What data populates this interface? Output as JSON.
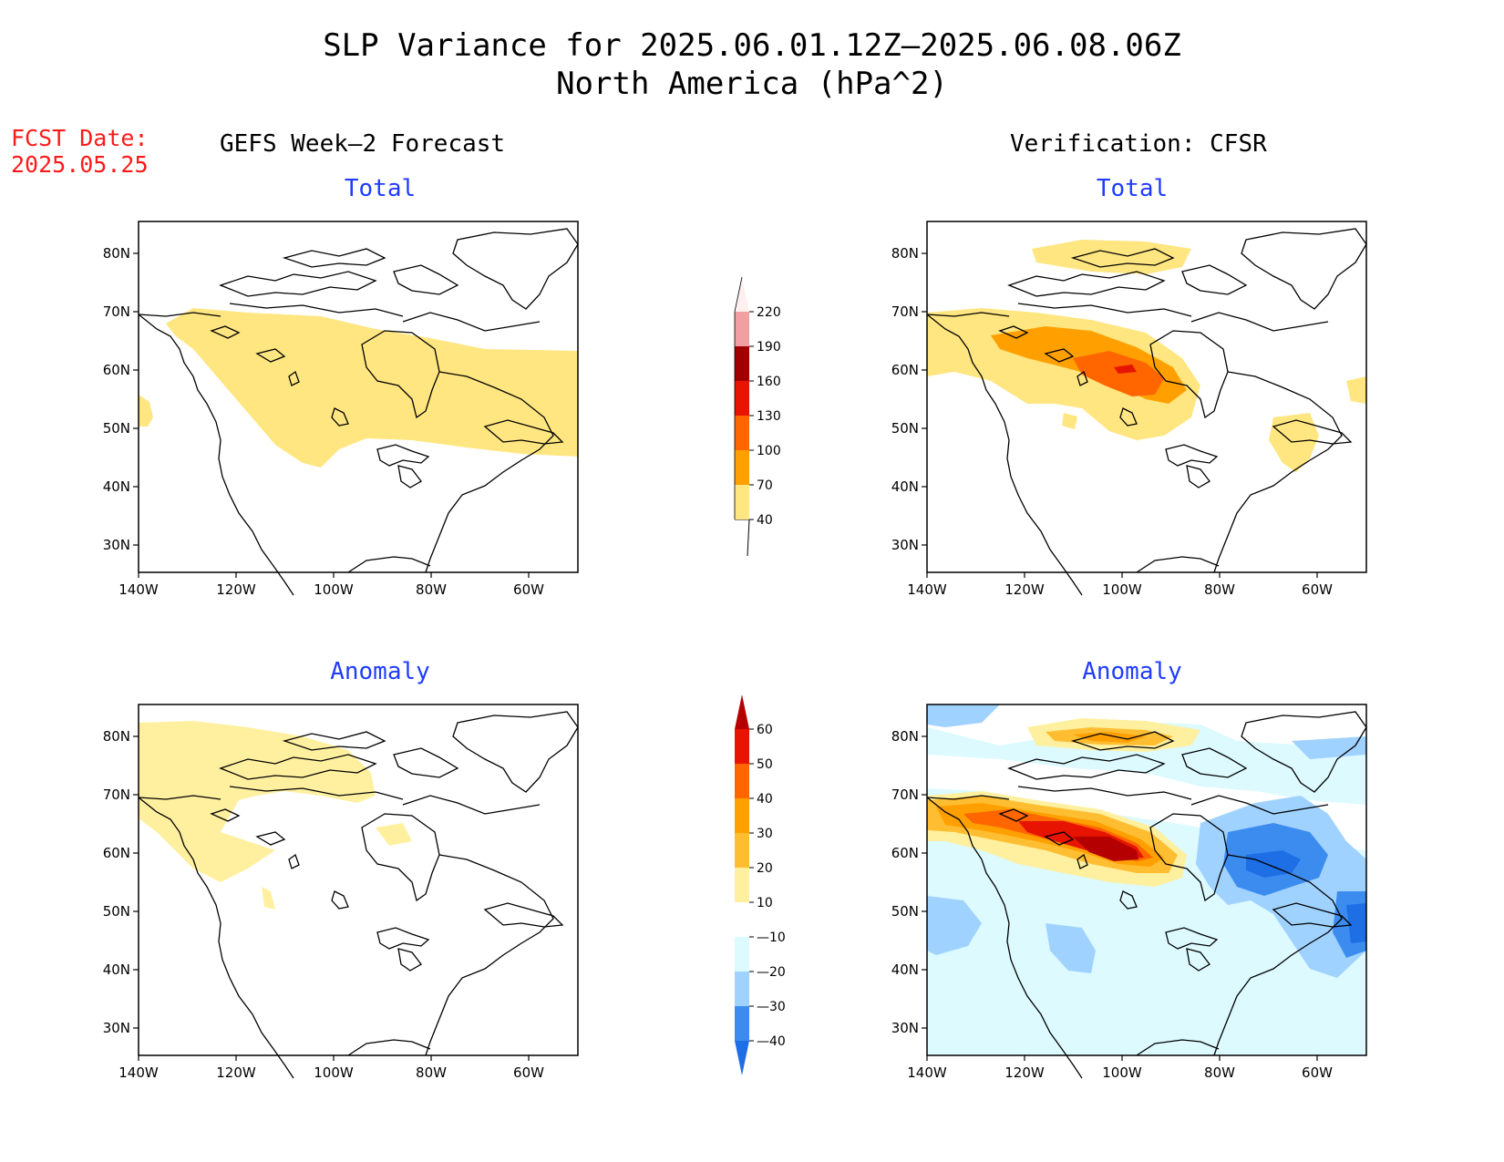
{
  "title": {
    "line1": "SLP Variance for 2025.06.01.12Z—2025.06.08.06Z",
    "line2": "North America (hPa^2)"
  },
  "fcst_date": {
    "label": "FCST Date:",
    "value": "2025.05.25"
  },
  "columns": {
    "left": "GEFS Week—2 Forecast",
    "right": "Verification: CFSR"
  },
  "panels": [
    {
      "id": "forecast-total",
      "title": "Total"
    },
    {
      "id": "verification-total",
      "title": "Total"
    },
    {
      "id": "forecast-anomaly",
      "title": "Anomaly"
    },
    {
      "id": "verification-anomaly",
      "title": "Anomaly"
    }
  ],
  "axes": {
    "lat_ticks": [
      "80N",
      "70N",
      "60N",
      "50N",
      "40N",
      "30N"
    ],
    "lon_ticks": [
      "140W",
      "120W",
      "100W",
      "80W",
      "60W"
    ]
  },
  "colorbars": {
    "total": {
      "levels": [
        "40",
        "70",
        "100",
        "130",
        "160",
        "190",
        "220"
      ],
      "colors": [
        "#ffe680",
        "#ffa000",
        "#ff6600",
        "#e61400",
        "#a00000",
        "#f0a0a0",
        "#fff0f0"
      ]
    },
    "anomaly": {
      "levels": [
        "60",
        "50",
        "40",
        "30",
        "20",
        "10",
        "—10",
        "—20",
        "—30",
        "—40"
      ],
      "colors": [
        "#b40000",
        "#e61400",
        "#ff6600",
        "#ffa000",
        "#ffbe32",
        "#fff0a0",
        "#ffffff",
        "#dcfaff",
        "#a0d2ff",
        "#3c8cf0",
        "#1e6ee6"
      ]
    }
  },
  "colors": {
    "title": "#000000",
    "fcst_date": "#ff1a1a",
    "panel_title": "#1f3cff"
  }
}
